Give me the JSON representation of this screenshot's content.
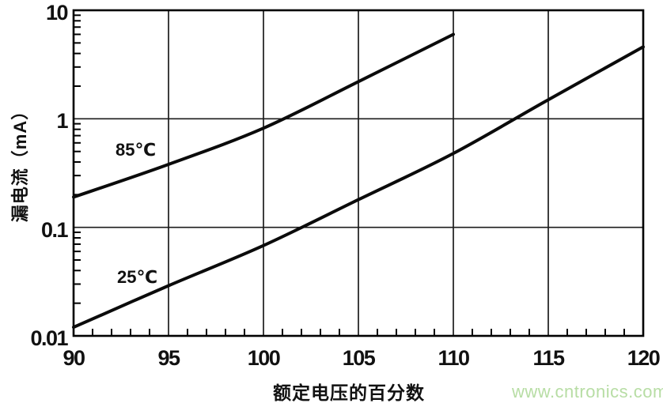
{
  "chart_data": {
    "type": "line",
    "title": "",
    "xlabel": "额定电压的百分数",
    "ylabel": "漏电流（mA）",
    "x_axis": {
      "min": 90,
      "max": 120,
      "ticks": [
        90,
        95,
        100,
        105,
        110,
        115,
        120
      ],
      "minor_step": 1
    },
    "y_axis": {
      "scale": "log",
      "min": 0.01,
      "max": 10,
      "ticks": [
        10,
        1,
        0.1,
        0.01
      ],
      "tick_labels": [
        "10",
        "1",
        "0.1",
        "0.01"
      ]
    },
    "grid": {
      "vertical_at": [
        95,
        100,
        105,
        110,
        115
      ],
      "horizontal_at": [
        1,
        0.1
      ],
      "style": "major-only"
    },
    "legend_position": "inline-labels",
    "series": [
      {
        "name": "85℃",
        "points": [
          [
            90,
            0.19
          ],
          [
            95,
            0.38
          ],
          [
            100,
            0.82
          ],
          [
            105,
            2.2
          ],
          [
            110,
            6.0
          ]
        ]
      },
      {
        "name": "25℃",
        "points": [
          [
            90,
            0.012
          ],
          [
            95,
            0.029
          ],
          [
            100,
            0.068
          ],
          [
            105,
            0.18
          ],
          [
            110,
            0.48
          ],
          [
            115,
            1.5
          ],
          [
            120,
            4.6
          ]
        ]
      }
    ]
  },
  "labels": {
    "series_85": "85℃",
    "series_25": "25℃"
  },
  "watermark": {
    "text": "www.cntronics.com",
    "color": "#b7dda4"
  },
  "colors": {
    "curve": "#0b0b0b",
    "grid": "#1c1c1c",
    "axis": "#000000",
    "background": "#ffffff",
    "text": "#111111"
  }
}
